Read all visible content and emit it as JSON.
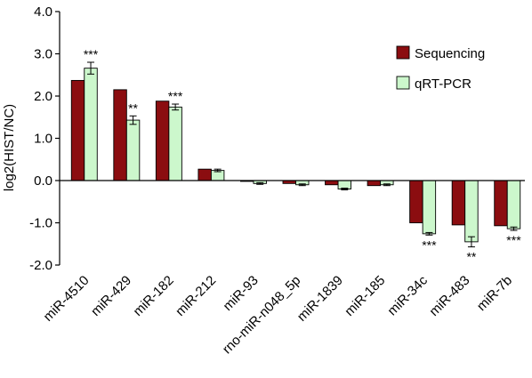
{
  "chart_data": {
    "type": "bar",
    "title": "",
    "xlabel": "",
    "ylabel": "log2(HIST/NC)",
    "ylim": [
      -2.0,
      4.0
    ],
    "yticks": [
      -2.0,
      -1.0,
      0.0,
      1.0,
      2.0,
      3.0,
      4.0
    ],
    "ytick_labels": [
      "-2.0",
      "-1.0",
      "0.0",
      "1.0",
      "2.0",
      "3.0",
      "4.0"
    ],
    "categories": [
      "miR-4510",
      "miR-429",
      "miR-182",
      "miR-212",
      "miR-93",
      "rno-miR-n048_5p",
      "miR-1839",
      "miR-185",
      "miR-34c",
      "miR-483",
      "miR-7b"
    ],
    "series": [
      {
        "name": "Sequencing",
        "color": "#8b0d10",
        "values": [
          2.37,
          2.15,
          1.88,
          0.27,
          -0.02,
          -0.07,
          -0.1,
          -0.12,
          -1.0,
          -1.05,
          -1.07
        ]
      },
      {
        "name": "qRT-PCR",
        "color": "#ccf7cc",
        "values": [
          2.66,
          1.43,
          1.74,
          0.24,
          -0.07,
          -0.1,
          -0.2,
          -0.1,
          -1.26,
          -1.45,
          -1.14
        ],
        "errors": [
          0.14,
          0.1,
          0.07,
          0.03,
          0.02,
          0.02,
          0.02,
          0.02,
          0.03,
          0.12,
          0.04
        ]
      }
    ],
    "annotations": [
      {
        "category": "miR-4510",
        "text": "***",
        "position": "above"
      },
      {
        "category": "miR-429",
        "text": "**",
        "position": "above"
      },
      {
        "category": "miR-182",
        "text": "***",
        "position": "above"
      },
      {
        "category": "miR-34c",
        "text": "***",
        "position": "below"
      },
      {
        "category": "miR-483",
        "text": "**",
        "position": "below"
      },
      {
        "category": "miR-7b",
        "text": "***",
        "position": "below"
      }
    ],
    "legend": {
      "position": "top-right",
      "entries": [
        "Sequencing",
        "qRT-PCR"
      ]
    },
    "grid": false
  }
}
